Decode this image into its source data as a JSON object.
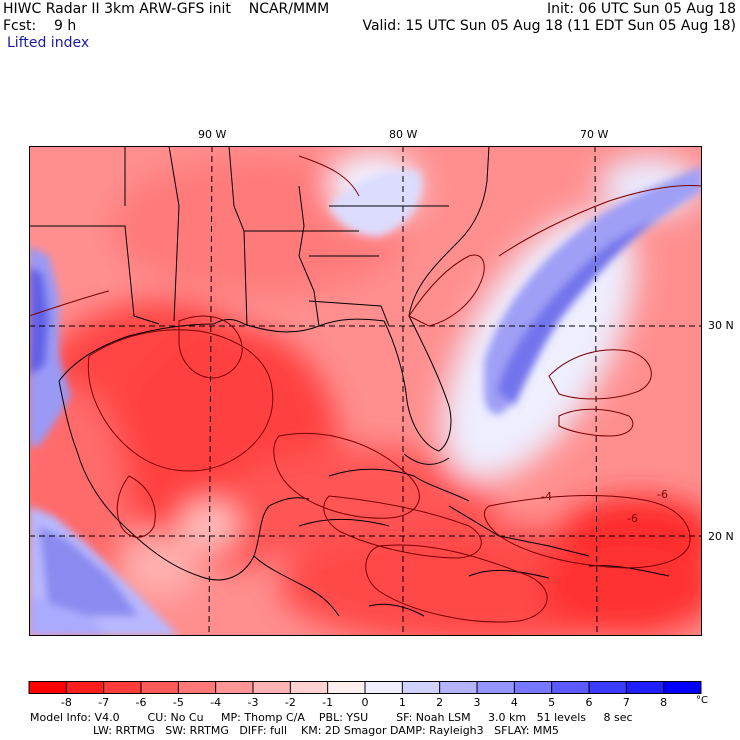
{
  "header": {
    "line1_left": "HIWC Radar II 3km ARW-GFS init    NCAR/MMM",
    "line1_right": "Init: 06 UTC Sun 05 Aug 18",
    "line2_left": "Fcst:    9 h",
    "line2_right": "Valid: 15 UTC Sun 05 Aug 18 (11 EDT Sun 05 Aug 18)",
    "field_name": "Lifted index"
  },
  "map": {
    "lon_labels": [
      "90 W",
      "80 W",
      "70 W"
    ],
    "lat_labels": [
      "30 N",
      "20 N"
    ],
    "contour_labels": [
      "-4",
      "-6",
      "-6"
    ]
  },
  "colorbar": {
    "unit": "°C",
    "tick_labels": [
      "-8",
      "-7",
      "-6",
      "-5",
      "-4",
      "-3",
      "-2",
      "-1",
      "0",
      "1",
      "2",
      "3",
      "4",
      "5",
      "6",
      "7",
      "8"
    ],
    "colors": [
      "#ff0000",
      "#ff1e1e",
      "#ff3c3c",
      "#ff5a5a",
      "#ff7777",
      "#ff9595",
      "#ffb3b3",
      "#ffd1d1",
      "#ffefef",
      "#efefff",
      "#d1d1ff",
      "#b3b3ff",
      "#9595ff",
      "#7777ff",
      "#5a5aff",
      "#3c3cff",
      "#1e1eff",
      "#0000ff"
    ]
  },
  "footer": {
    "line1": "Model Info: V4.0        CU: No Cu     MP: Thomp C/A    PBL: YSU        SF: Noah LSM     3.0 km   51 levels     8 sec",
    "line2": "                  LW: RRTMG   SW: RRTMG   DIFF: full    KM: 2D Smagor DAMP: Rayleigh3   SFLAY: MM5"
  }
}
